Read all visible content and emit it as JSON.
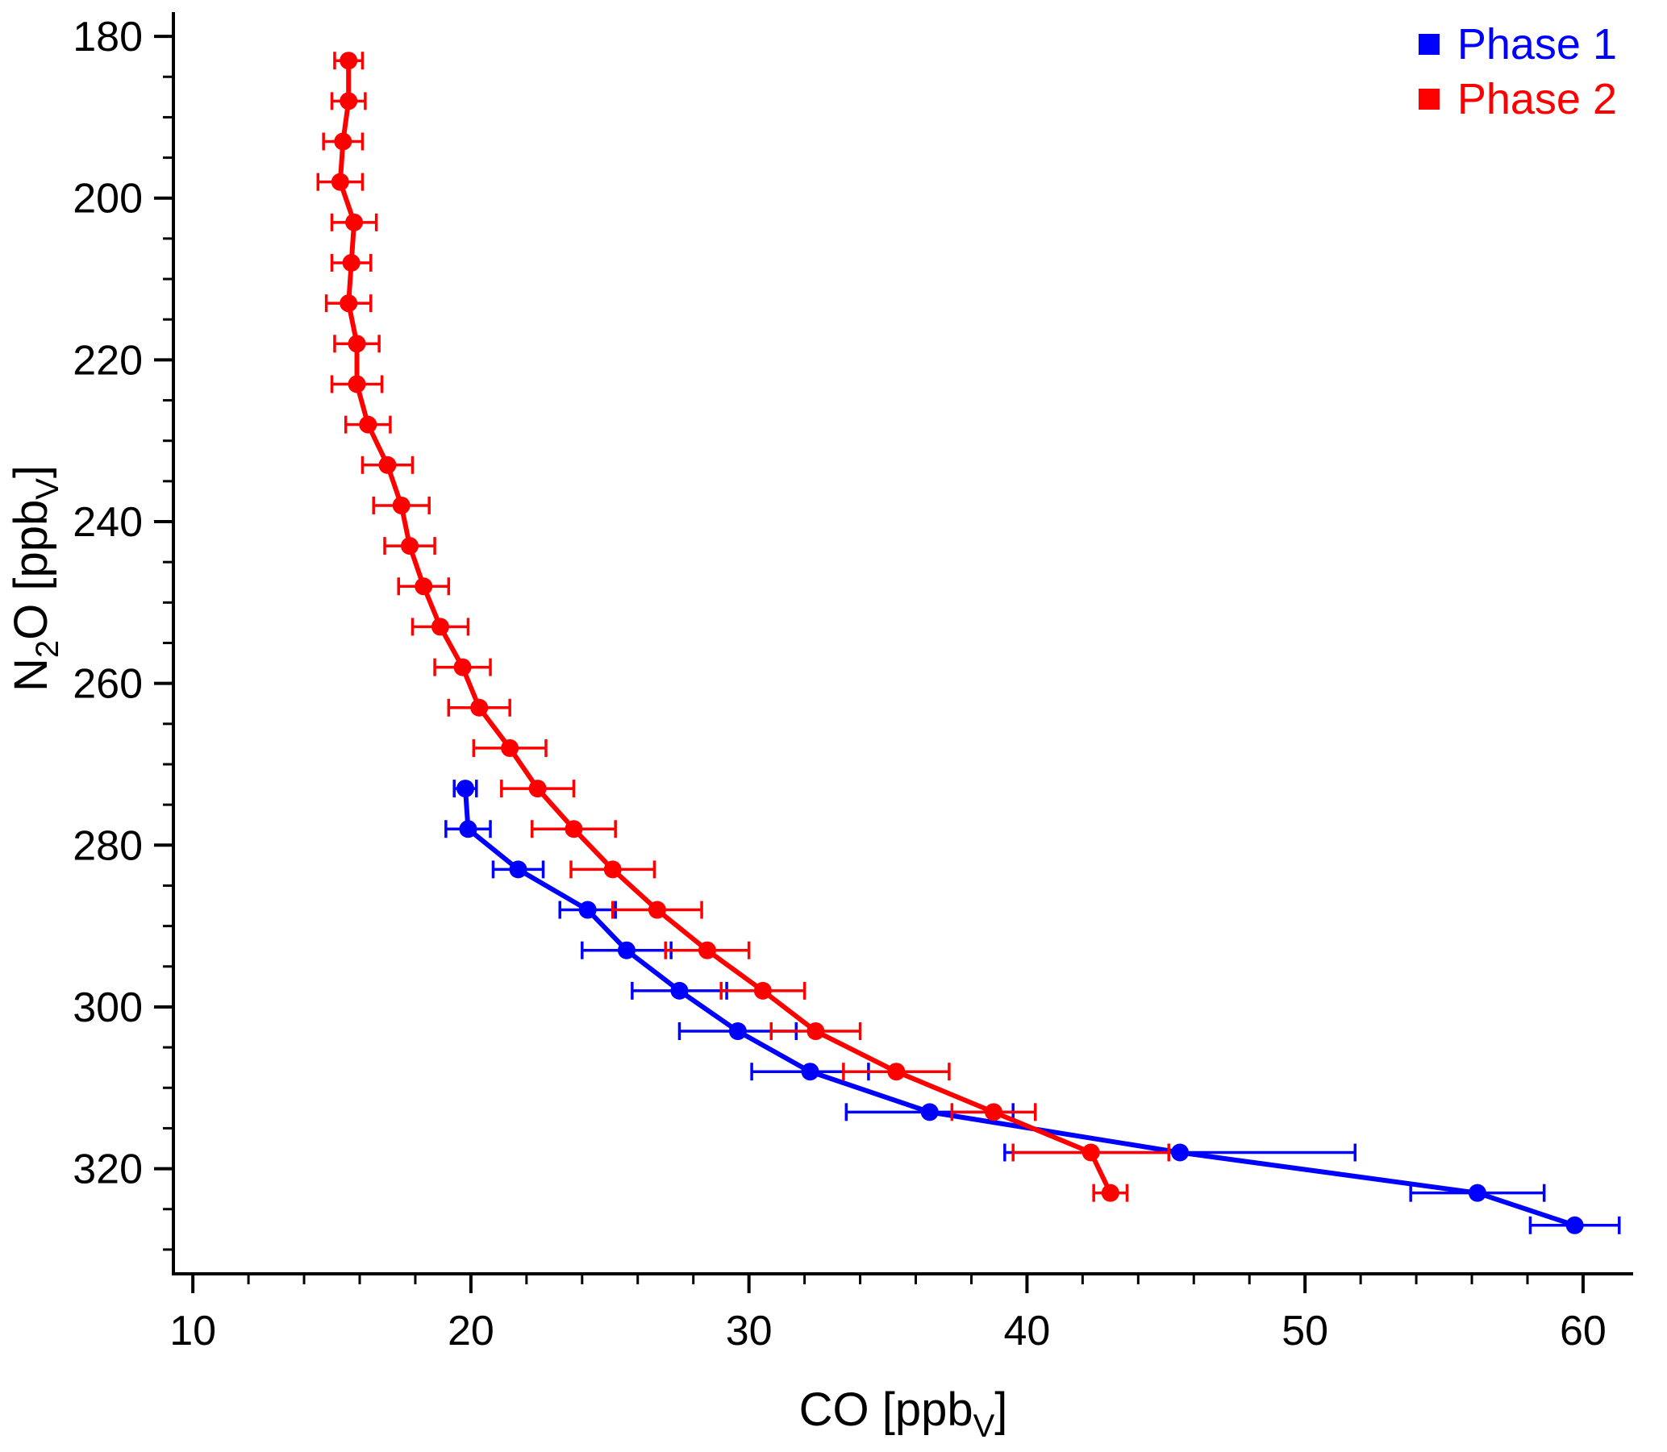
{
  "chart_data": {
    "type": "line",
    "title": "",
    "xlabel": "CO [ppbV]",
    "ylabel": "N2O [ppbV]",
    "xlabel_parts": [
      {
        "text": "CO [ppb",
        "sub": false
      },
      {
        "text": "V",
        "sub": true
      },
      {
        "text": "]",
        "sub": false
      }
    ],
    "ylabel_parts": [
      {
        "text": "N",
        "sub": false
      },
      {
        "text": "2",
        "sub": true
      },
      {
        "text": "O [ppb",
        "sub": false
      },
      {
        "text": "V",
        "sub": true
      },
      {
        "text": "]",
        "sub": false
      }
    ],
    "xlim": [
      9.3,
      61.8
    ],
    "ylim": [
      177,
      333
    ],
    "y_axis_inverted": true,
    "x_ticks": [
      10,
      20,
      30,
      40,
      50,
      60
    ],
    "x_minor_step": 2,
    "y_ticks": [
      180,
      200,
      220,
      240,
      260,
      280,
      300,
      320
    ],
    "y_minor_step": 5,
    "grid": false,
    "legend_position": "top-right",
    "error_bars": "horizontal",
    "series": [
      {
        "name": "Phase 1",
        "color": "#0000ff",
        "points": [
          {
            "n2o": 273,
            "co": 19.8,
            "err": 0.4
          },
          {
            "n2o": 278,
            "co": 19.9,
            "err": 0.8
          },
          {
            "n2o": 283,
            "co": 21.7,
            "err": 0.9
          },
          {
            "n2o": 288,
            "co": 24.2,
            "err": 1.0
          },
          {
            "n2o": 293,
            "co": 25.6,
            "err": 1.6
          },
          {
            "n2o": 298,
            "co": 27.5,
            "err": 1.7
          },
          {
            "n2o": 303,
            "co": 29.6,
            "err": 2.1
          },
          {
            "n2o": 308,
            "co": 32.2,
            "err": 2.1
          },
          {
            "n2o": 313,
            "co": 36.5,
            "err": 3.0
          },
          {
            "n2o": 318,
            "co": 45.5,
            "err": 6.3
          },
          {
            "n2o": 323,
            "co": 56.2,
            "err": 2.4
          },
          {
            "n2o": 327,
            "co": 59.7,
            "err": 1.6
          }
        ]
      },
      {
        "name": "Phase 2",
        "color": "#ff0000",
        "points": [
          {
            "n2o": 183,
            "co": 15.6,
            "err": 0.5
          },
          {
            "n2o": 188,
            "co": 15.6,
            "err": 0.6
          },
          {
            "n2o": 193,
            "co": 15.4,
            "err": 0.7
          },
          {
            "n2o": 198,
            "co": 15.3,
            "err": 0.8
          },
          {
            "n2o": 203,
            "co": 15.8,
            "err": 0.8
          },
          {
            "n2o": 208,
            "co": 15.7,
            "err": 0.7
          },
          {
            "n2o": 213,
            "co": 15.6,
            "err": 0.8
          },
          {
            "n2o": 218,
            "co": 15.9,
            "err": 0.8
          },
          {
            "n2o": 223,
            "co": 15.9,
            "err": 0.9
          },
          {
            "n2o": 228,
            "co": 16.3,
            "err": 0.8
          },
          {
            "n2o": 233,
            "co": 17.0,
            "err": 0.9
          },
          {
            "n2o": 238,
            "co": 17.5,
            "err": 1.0
          },
          {
            "n2o": 243,
            "co": 17.8,
            "err": 0.9
          },
          {
            "n2o": 248,
            "co": 18.3,
            "err": 0.9
          },
          {
            "n2o": 253,
            "co": 18.9,
            "err": 1.0
          },
          {
            "n2o": 258,
            "co": 19.7,
            "err": 1.0
          },
          {
            "n2o": 263,
            "co": 20.3,
            "err": 1.1
          },
          {
            "n2o": 268,
            "co": 21.4,
            "err": 1.3
          },
          {
            "n2o": 273,
            "co": 22.4,
            "err": 1.3
          },
          {
            "n2o": 278,
            "co": 23.7,
            "err": 1.5
          },
          {
            "n2o": 283,
            "co": 25.1,
            "err": 1.5
          },
          {
            "n2o": 288,
            "co": 26.7,
            "err": 1.6
          },
          {
            "n2o": 293,
            "co": 28.5,
            "err": 1.5
          },
          {
            "n2o": 298,
            "co": 30.5,
            "err": 1.5
          },
          {
            "n2o": 303,
            "co": 32.4,
            "err": 1.6
          },
          {
            "n2o": 308,
            "co": 35.3,
            "err": 1.9
          },
          {
            "n2o": 313,
            "co": 38.8,
            "err": 1.5
          },
          {
            "n2o": 318,
            "co": 42.3,
            "err": 2.8
          },
          {
            "n2o": 323,
            "co": 43.0,
            "err": 0.6
          }
        ]
      }
    ]
  }
}
